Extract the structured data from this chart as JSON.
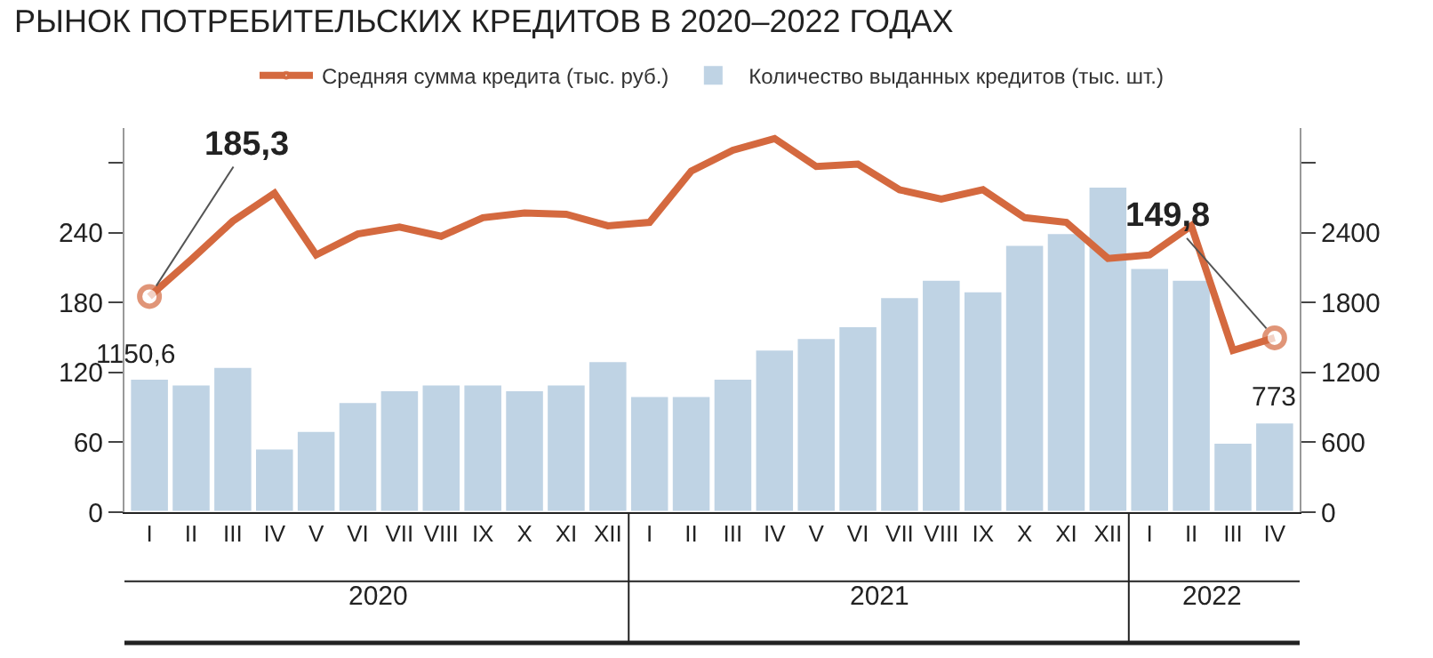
{
  "chart_data": {
    "type": "bar",
    "title": "РЫНОК ПОТРЕБИТЕЛЬСКИХ КРЕДИТОВ В 2020–2022 ГОДАХ",
    "categories": [
      "I",
      "II",
      "III",
      "IV",
      "V",
      "VI",
      "VII",
      "VIII",
      "IX",
      "X",
      "XI",
      "XII",
      "I",
      "II",
      "III",
      "IV",
      "V",
      "VI",
      "VII",
      "VIII",
      "IX",
      "X",
      "XI",
      "XII",
      "I",
      "II",
      "III",
      "IV"
    ],
    "annotations": [
      "2020",
      "2021",
      "2022"
    ],
    "series": [
      {
        "name": "Количество выданных кредитов (тыс. шт.)",
        "axis": "y2",
        "color": "#bfd3e4",
        "values": [
          1150.6,
          1100,
          1250,
          550,
          700,
          950,
          1050,
          1100,
          1100,
          1050,
          1100,
          1300,
          1000,
          1000,
          1150,
          1400,
          1500,
          1600,
          1850,
          2000,
          1900,
          2300,
          2400,
          2800,
          2100,
          2000,
          600,
          773
        ],
        "value_labels": [
          "1150,6",
          null,
          null,
          null,
          null,
          null,
          null,
          null,
          null,
          null,
          null,
          null,
          null,
          null,
          null,
          null,
          null,
          null,
          null,
          null,
          null,
          null,
          null,
          null,
          null,
          null,
          null,
          "773"
        ]
      },
      {
        "name": "Средняя сумма кредита (тыс. руб.)",
        "type": "line",
        "color": "#d4693f",
        "values": [
          185.3,
          217,
          250,
          274,
          221,
          239,
          245,
          237,
          253,
          257,
          256,
          246,
          249,
          293,
          311,
          321,
          297,
          299,
          277,
          269,
          277,
          253,
          249,
          218,
          221,
          246,
          139,
          149.8
        ],
        "value_labels": [
          "185,3",
          null,
          null,
          null,
          null,
          null,
          null,
          null,
          null,
          null,
          null,
          null,
          null,
          null,
          null,
          null,
          null,
          null,
          null,
          null,
          null,
          null,
          null,
          null,
          null,
          null,
          null,
          "149,8"
        ]
      }
    ],
    "ylim": [
      0,
      330
    ],
    "yticks": [
      0,
      60,
      120,
      180,
      240,
      {
        "value": 300,
        "label": null
      }
    ],
    "y2lim": [
      0,
      3300
    ],
    "y2ticks": [
      0,
      600,
      1200,
      1800,
      2400,
      {
        "value": 3000,
        "label": null
      }
    ],
    "legend": "top"
  }
}
